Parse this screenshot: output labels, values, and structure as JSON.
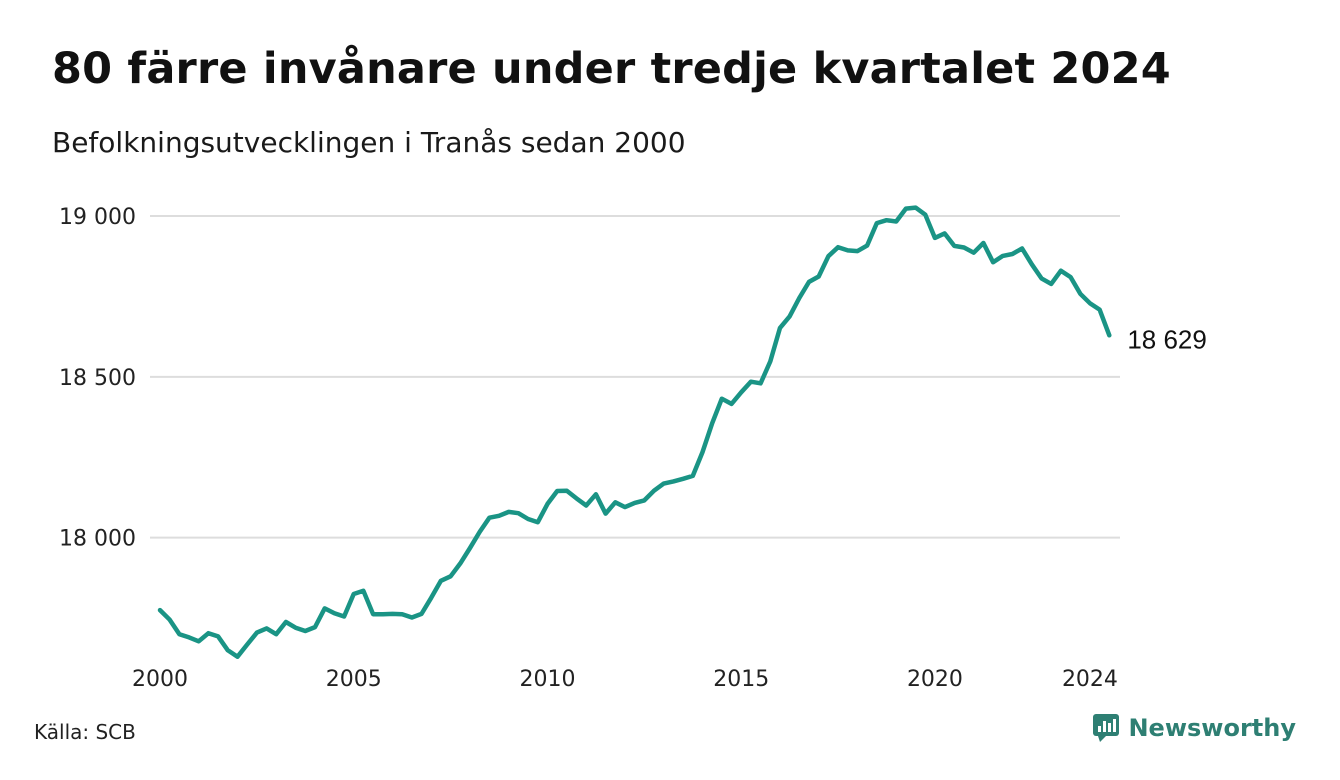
{
  "header": {
    "title": "80 färre invånare under tredje kvartalet 2024",
    "subtitle": "Befolkningsutvecklingen i Tranås sedan 2000"
  },
  "footer": {
    "source": "Källa: SCB",
    "brand": "Newsworthy",
    "brand_icon": "newsworthy-logo-icon"
  },
  "colors": {
    "line": "#1a9485",
    "grid": "#dddddd",
    "brand": "#2e7f73"
  },
  "chart_data": {
    "type": "line",
    "title": "80 färre invånare under tredje kvartalet 2024",
    "subtitle": "Befolkningsutvecklingen i Tranås sedan 2000",
    "xlim": [
      2000,
      2024.75
    ],
    "ylim": [
      17570,
      19000
    ],
    "y_ticks": [
      {
        "value": 18000,
        "label": "18 000"
      },
      {
        "value": 18500,
        "label": "18 500"
      },
      {
        "value": 19000,
        "label": "19 000"
      }
    ],
    "x_ticks": [
      {
        "value": 2000,
        "label": "2000"
      },
      {
        "value": 2005,
        "label": "2005"
      },
      {
        "value": 2010,
        "label": "2010"
      },
      {
        "value": 2015,
        "label": "2015"
      },
      {
        "value": 2020,
        "label": "2020"
      },
      {
        "value": 2024,
        "label": "2024"
      }
    ],
    "grid": true,
    "end_label": "18 629",
    "series": [
      {
        "x": [
          2000.0,
          2000.25,
          2000.5,
          2000.75,
          2001.0,
          2001.25,
          2001.5,
          2001.75,
          2002.0,
          2002.25,
          2002.5,
          2002.75,
          2003.0,
          2003.25,
          2003.5,
          2003.75,
          2004.0,
          2004.25,
          2004.5,
          2004.75,
          2005.0,
          2005.25,
          2005.5,
          2005.75,
          2006.0,
          2006.25,
          2006.5,
          2006.75,
          2007.0,
          2007.25,
          2007.5,
          2007.75,
          2008.0,
          2008.25,
          2008.5,
          2008.75,
          2009.0,
          2009.25,
          2009.5,
          2009.75,
          2010.0,
          2010.25,
          2010.5,
          2010.75,
          2011.0,
          2011.25,
          2011.5,
          2011.75,
          2012.0,
          2012.25,
          2012.5,
          2012.75,
          2013.0,
          2013.25,
          2013.5,
          2013.75,
          2014.0,
          2014.25,
          2014.5,
          2014.75,
          2015.0,
          2015.25,
          2015.5,
          2015.75,
          2016.0,
          2016.25,
          2016.5,
          2016.75,
          2017.0,
          2017.25,
          2017.5,
          2017.75,
          2018.0,
          2018.25,
          2018.5,
          2018.75,
          2019.0,
          2019.25,
          2019.5,
          2019.75,
          2020.0,
          2020.25,
          2020.5,
          2020.75,
          2021.0,
          2021.25,
          2021.5,
          2021.75,
          2022.0,
          2022.25,
          2022.5,
          2022.75,
          2023.0,
          2023.25,
          2023.5,
          2023.75,
          2024.0,
          2024.25,
          2024.5
        ],
        "values": [
          17775,
          17745,
          17700,
          17690,
          17678,
          17703,
          17693,
          17650,
          17630,
          17668,
          17705,
          17718,
          17700,
          17738,
          17720,
          17710,
          17722,
          17780,
          17765,
          17755,
          17825,
          17835,
          17762,
          17762,
          17763,
          17762,
          17752,
          17763,
          17813,
          17866,
          17880,
          17920,
          17968,
          18018,
          18062,
          18068,
          18080,
          18076,
          18058,
          18048,
          18105,
          18145,
          18146,
          18122,
          18100,
          18135,
          18075,
          18110,
          18095,
          18108,
          18116,
          18146,
          18168,
          18175,
          18183,
          18192,
          18266,
          18356,
          18432,
          18416,
          18452,
          18485,
          18480,
          18548,
          18652,
          18688,
          18745,
          18795,
          18812,
          18875,
          18903,
          18893,
          18891,
          18908,
          18978,
          18987,
          18983,
          19023,
          19026,
          19004,
          18932,
          18946,
          18907,
          18902,
          18886,
          18916,
          18856,
          18876,
          18882,
          18899,
          18850,
          18806,
          18789,
          18830,
          18810,
          18758,
          18729,
          18709,
          18629
        ]
      }
    ]
  }
}
